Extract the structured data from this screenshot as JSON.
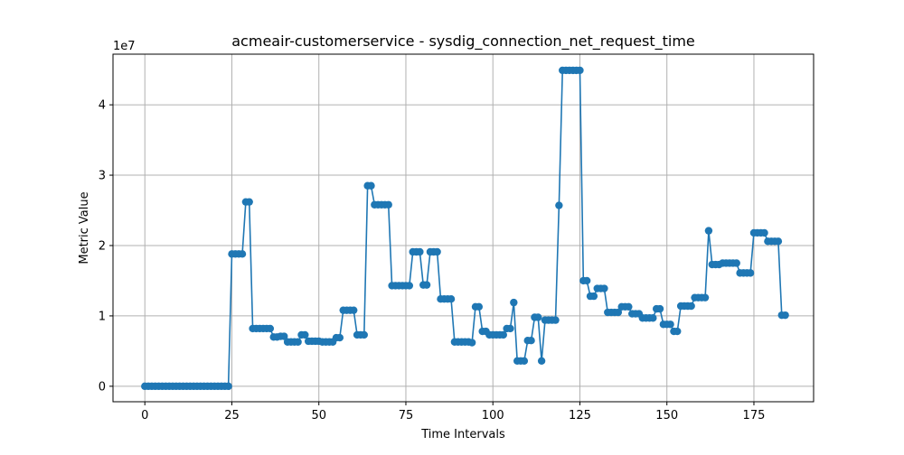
{
  "chart_data": {
    "type": "line",
    "title": "acmeair-customerservice - sysdig_connection_net_request_time",
    "xlabel": "Time Intervals",
    "ylabel": "Metric Value",
    "y_scale_label": "1e7",
    "xlim": [
      -9.15,
      192.15
    ],
    "ylim": [
      -0.22,
      4.72
    ],
    "x_ticks": [
      0,
      25,
      50,
      75,
      100,
      125,
      150,
      175
    ],
    "y_ticks": [
      0,
      1,
      2,
      3,
      4
    ],
    "grid": true,
    "marker": "circle",
    "colors": {
      "series": "#1f77b4",
      "grid": "#b0b0b0",
      "axes": "#000000"
    },
    "series": [
      {
        "values": [
          0,
          0,
          0,
          0,
          0,
          0,
          0,
          0,
          0,
          0,
          0,
          0,
          0,
          0,
          0,
          0,
          0,
          0,
          0,
          0,
          0,
          0,
          0,
          0,
          0,
          1.88,
          1.88,
          1.88,
          1.88,
          2.62,
          2.62,
          0.82,
          0.82,
          0.82,
          0.82,
          0.82,
          0.82,
          0.7,
          0.7,
          0.71,
          0.71,
          0.63,
          0.63,
          0.63,
          0.63,
          0.73,
          0.73,
          0.64,
          0.64,
          0.64,
          0.64,
          0.63,
          0.63,
          0.63,
          0.63,
          0.69,
          0.69,
          1.08,
          1.08,
          1.08,
          1.08,
          0.73,
          0.73,
          0.73,
          2.85,
          2.85,
          2.58,
          2.58,
          2.58,
          2.58,
          2.58,
          1.43,
          1.43,
          1.43,
          1.43,
          1.43,
          1.43,
          1.91,
          1.91,
          1.91,
          1.44,
          1.44,
          1.91,
          1.91,
          1.91,
          1.24,
          1.24,
          1.24,
          1.24,
          0.63,
          0.63,
          0.63,
          0.63,
          0.63,
          0.62,
          1.13,
          1.13,
          0.78,
          0.78,
          0.73,
          0.73,
          0.73,
          0.73,
          0.73,
          0.82,
          0.82,
          1.19,
          0.36,
          0.36,
          0.36,
          0.65,
          0.65,
          0.98,
          0.98,
          0.36,
          0.94,
          0.94,
          0.94,
          0.94,
          2.57,
          4.49,
          4.49,
          4.49,
          4.49,
          4.49,
          4.49,
          1.5,
          1.5,
          1.28,
          1.28,
          1.39,
          1.39,
          1.39,
          1.05,
          1.05,
          1.05,
          1.05,
          1.13,
          1.13,
          1.13,
          1.03,
          1.03,
          1.03,
          0.97,
          0.97,
          0.97,
          0.97,
          1.1,
          1.1,
          0.88,
          0.88,
          0.88,
          0.78,
          0.78,
          1.14,
          1.14,
          1.14,
          1.14,
          1.26,
          1.26,
          1.26,
          1.26,
          2.21,
          1.73,
          1.73,
          1.73,
          1.75,
          1.75,
          1.75,
          1.75,
          1.75,
          1.61,
          1.61,
          1.61,
          1.61,
          2.18,
          2.18,
          2.18,
          2.18,
          2.06,
          2.06,
          2.06,
          2.06,
          1.01,
          1.01
        ]
      }
    ]
  }
}
